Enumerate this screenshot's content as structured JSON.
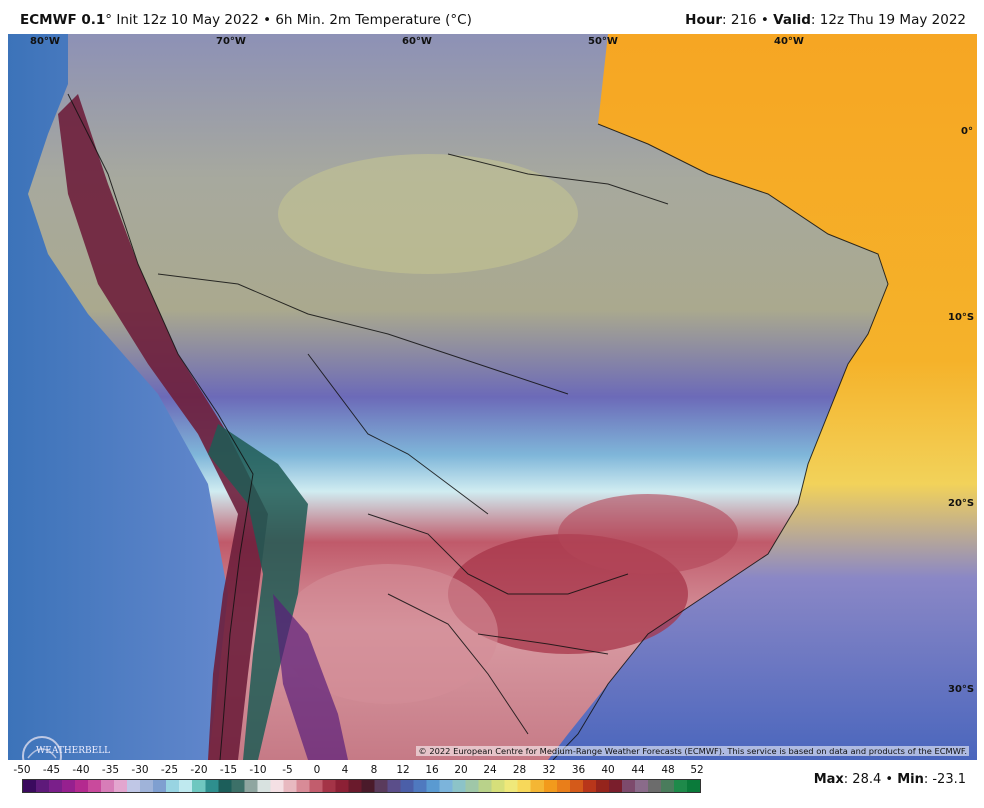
{
  "header": {
    "model": "ECMWF 0.1",
    "deg": "°",
    "init": " Init 12z 10 May 2022 • 6h Min. 2m Temperature (°C)",
    "hour_label": "Hour",
    "hour_value": ": 216 • ",
    "valid_label": "Valid",
    "valid_value": ": 12z Thu 19 May 2022"
  },
  "map": {
    "lon_labels": [
      "80°W",
      "70°W",
      "60°W",
      "50°W",
      "40°W"
    ],
    "lat_labels": [
      "0°",
      "10°S",
      "20°S",
      "30°S"
    ],
    "copyright": "© 2022 European Centre for Medium-Range Weather Forecasts (ECMWF). This service is based on data and products of the ECMWF.",
    "logo_text": "WEATHERBELL"
  },
  "colorbar": {
    "ticks": [
      "-50",
      "-45",
      "-40",
      "-35",
      "-30",
      "-25",
      "-20",
      "-15",
      "-10",
      "-5",
      "0",
      "4",
      "8",
      "12",
      "16",
      "20",
      "24",
      "28",
      "32",
      "36",
      "40",
      "44",
      "48",
      "52"
    ],
    "colors": [
      "#3b0a5e",
      "#5e1a7a",
      "#7a1f8a",
      "#96208f",
      "#b42a8f",
      "#c94a9c",
      "#d77db8",
      "#e3a6cf",
      "#c0c7e6",
      "#9fb3d9",
      "#7f9fd0",
      "#98d4e2",
      "#bfe9ef",
      "#6fc7c0",
      "#2e8f8e",
      "#1c5e5a",
      "#3c7068",
      "#8fa6a0",
      "#d8e2e0",
      "#f4e0e4",
      "#e8b9c0",
      "#d88b97",
      "#c25d6d",
      "#a43447",
      "#8c2035",
      "#6a1a2c",
      "#4a1a2a",
      "#5a3b5c",
      "#5b4e8a",
      "#4b5fa8",
      "#4f79bf",
      "#5a9ad1",
      "#7cb4db",
      "#8cc3c8",
      "#9fc7a8",
      "#b9d28a",
      "#d6df7a",
      "#efe87a",
      "#f7d85a",
      "#f4b634",
      "#f29a1c",
      "#e97e1a",
      "#d45a1a",
      "#b8361a",
      "#95241c",
      "#7a1e2c",
      "#7d4a6c",
      "#8a6b8a",
      "#6c6c6c",
      "#4a7c5c",
      "#1e8a4a",
      "#0a7a3a"
    ]
  },
  "stats": {
    "max_label": "Max",
    "max_value": ": 28.4 • ",
    "min_label": "Min",
    "min_value": ": -23.1"
  }
}
